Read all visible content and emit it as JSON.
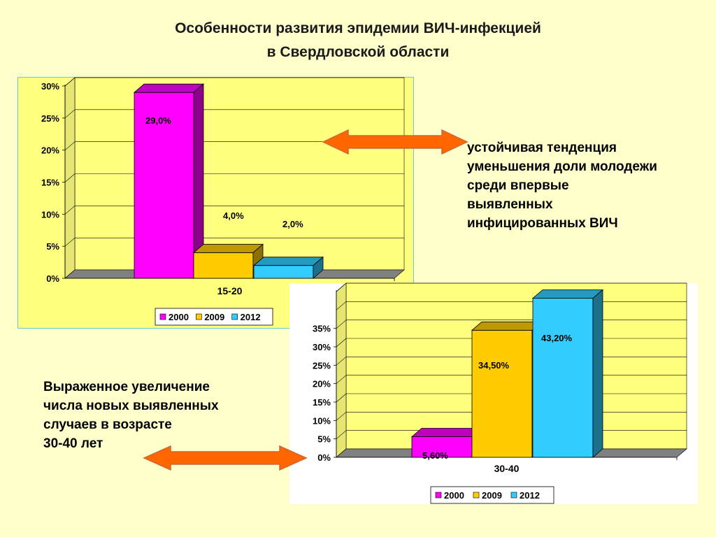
{
  "title": {
    "line1": "Особенности развития эпидемии  ВИЧ-инфекцией",
    "line2": "в Свердловской области"
  },
  "captions": {
    "right": [
      "устойчивая тенденция",
      "уменьшения доли молодежи",
      "среди впервые",
      "выявленных",
      "инфицированных ВИЧ"
    ],
    "left": [
      "Выраженное увеличение",
      "числа новых выявленных",
      "случаев в возрасте",
      "30-40 лет"
    ]
  },
  "colors": {
    "page_bg": "#FFFFCC",
    "plot_bg": "#FFFF80",
    "s2000": "#FF00FF",
    "s2009": "#FFCC00",
    "s2012": "#33CCFF",
    "arrow_fill": "#FF6600"
  },
  "chart_data": [
    {
      "type": "bar",
      "categories": [
        "15-20"
      ],
      "series": [
        {
          "name": "2000",
          "values": [
            29.0
          ],
          "label": "29,0%"
        },
        {
          "name": "2009",
          "values": [
            4.0
          ],
          "label": "4,0%"
        },
        {
          "name": "2012",
          "values": [
            2.0
          ],
          "label": "2,0%"
        }
      ],
      "ylim": [
        0,
        30
      ],
      "yticks": [
        "0%",
        "5%",
        "10%",
        "15%",
        "20%",
        "25%",
        "30%"
      ],
      "legend": [
        "2000",
        "2009",
        "2012"
      ],
      "grid": true,
      "legend_position": "bottom"
    },
    {
      "type": "bar",
      "categories": [
        "30-40"
      ],
      "series": [
        {
          "name": "2000",
          "values": [
            5.6
          ],
          "label": "5,60%"
        },
        {
          "name": "2009",
          "values": [
            34.5
          ],
          "label": "34,50%"
        },
        {
          "name": "2012",
          "values": [
            43.2
          ],
          "label": "43,20%"
        }
      ],
      "ylim": [
        0,
        45
      ],
      "yticks": [
        "0%",
        "5%",
        "10%",
        "15%",
        "20%",
        "25%",
        "30%",
        "35%"
      ],
      "legend": [
        "2000",
        "2009",
        "2012"
      ],
      "grid": true,
      "legend_position": "bottom"
    }
  ]
}
